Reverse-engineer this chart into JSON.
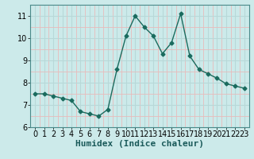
{
  "x": [
    0,
    1,
    2,
    3,
    4,
    5,
    6,
    7,
    8,
    9,
    10,
    11,
    12,
    13,
    14,
    15,
    16,
    17,
    18,
    19,
    20,
    21,
    22,
    23
  ],
  "y": [
    7.5,
    7.5,
    7.4,
    7.3,
    7.2,
    6.7,
    6.6,
    6.5,
    6.8,
    8.6,
    10.1,
    11.0,
    10.5,
    10.1,
    9.3,
    9.8,
    11.1,
    9.2,
    8.6,
    8.4,
    8.2,
    7.95,
    7.85,
    7.75
  ],
  "line_color": "#1a6b5e",
  "marker": "D",
  "marker_size": 2.5,
  "background_color": "#cceaea",
  "xlabel": "Humidex (Indice chaleur)",
  "xlabel_fontsize": 8,
  "xlim": [
    -0.5,
    23.5
  ],
  "ylim": [
    6,
    11.5
  ],
  "yticks": [
    6,
    7,
    8,
    9,
    10,
    11
  ],
  "xticks": [
    0,
    1,
    2,
    3,
    4,
    5,
    6,
    7,
    8,
    9,
    10,
    11,
    12,
    13,
    14,
    15,
    16,
    17,
    18,
    19,
    20,
    21,
    22,
    23
  ],
  "tick_fontsize": 7,
  "grid_major_color": "#b8d8d8",
  "grid_minor_color": "#e8bbbb"
}
